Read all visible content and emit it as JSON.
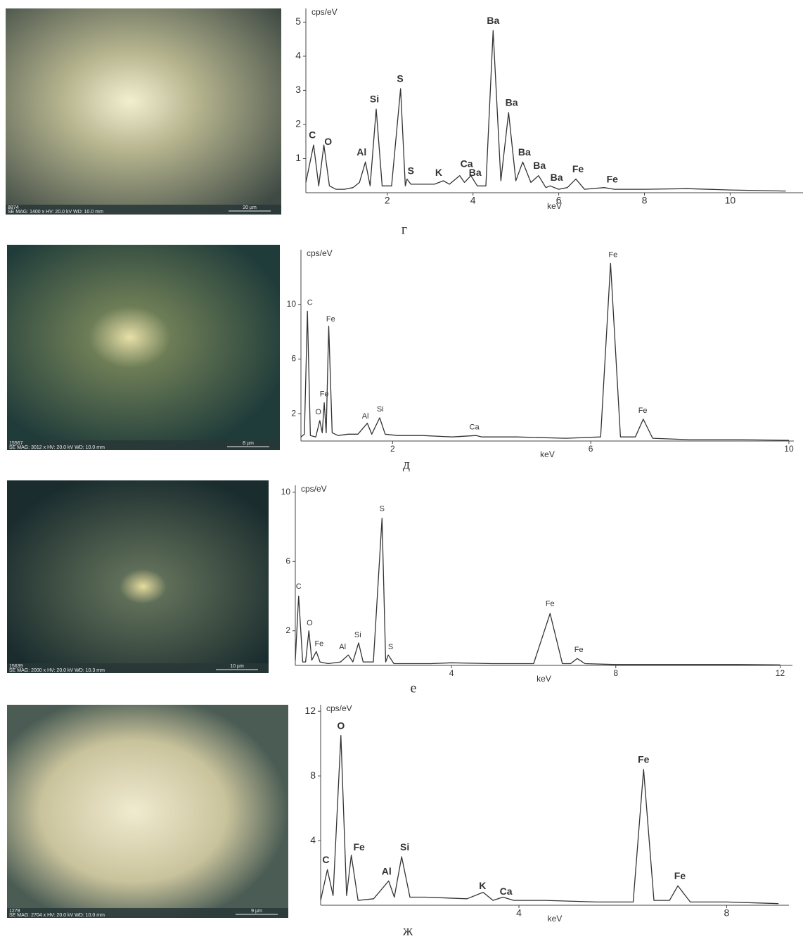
{
  "chart_data": [
    {
      "type": "line",
      "caption": "г",
      "y_label": "cps/eV",
      "x_label": "keV",
      "color": "#333333",
      "image": {
        "id": "8874",
        "info": "SE MAG: 1400 x HV: 20.0 kV WD: 10.0 mm",
        "scale": "20 µm"
      },
      "xlim": [
        0.1,
        11.7
      ],
      "ylim": [
        0,
        5.4
      ],
      "xticks": [
        2,
        4,
        6,
        8,
        10
      ],
      "yticks": [
        1,
        2,
        3,
        4,
        5
      ],
      "x": [
        0.1,
        0.28,
        0.4,
        0.52,
        0.65,
        0.8,
        1.0,
        1.2,
        1.35,
        1.49,
        1.6,
        1.74,
        1.88,
        2.1,
        2.31,
        2.42,
        2.46,
        2.55,
        2.8,
        3.1,
        3.31,
        3.45,
        3.69,
        3.8,
        3.95,
        4.1,
        4.3,
        4.47,
        4.65,
        4.83,
        5.0,
        5.16,
        5.35,
        5.53,
        5.7,
        5.8,
        6.0,
        6.2,
        6.4,
        6.6,
        7.06,
        7.3,
        8.0,
        9.0,
        10.0,
        11.3
      ],
      "values": [
        0.3,
        1.4,
        0.2,
        1.4,
        0.2,
        0.1,
        0.1,
        0.15,
        0.3,
        0.9,
        0.2,
        2.45,
        0.2,
        0.2,
        3.05,
        0.2,
        0.4,
        0.25,
        0.25,
        0.25,
        0.35,
        0.25,
        0.5,
        0.3,
        0.5,
        0.2,
        0.2,
        4.75,
        0.35,
        2.35,
        0.35,
        0.9,
        0.3,
        0.5,
        0.15,
        0.2,
        0.1,
        0.15,
        0.4,
        0.1,
        0.15,
        0.1,
        0.1,
        0.12,
        0.08,
        0.05
      ],
      "annotations": [
        {
          "text": "C",
          "x": 0.25,
          "y": 1.55
        },
        {
          "text": "O",
          "x": 0.62,
          "y": 1.35
        },
        {
          "text": "Al",
          "x": 1.4,
          "y": 1.05
        },
        {
          "text": "Si",
          "x": 1.7,
          "y": 2.6
        },
        {
          "text": "S",
          "x": 2.3,
          "y": 3.2
        },
        {
          "text": "S",
          "x": 2.55,
          "y": 0.5
        },
        {
          "text": "K",
          "x": 3.2,
          "y": 0.45
        },
        {
          "text": "Ca",
          "x": 3.85,
          "y": 0.7
        },
        {
          "text": "Ba",
          "x": 4.05,
          "y": 0.45
        },
        {
          "text": "Ba",
          "x": 4.47,
          "y": 4.9
        },
        {
          "text": "Ba",
          "x": 4.9,
          "y": 2.5
        },
        {
          "text": "Ba",
          "x": 5.2,
          "y": 1.05
        },
        {
          "text": "Ba",
          "x": 5.55,
          "y": 0.65
        },
        {
          "text": "Ba",
          "x": 5.95,
          "y": 0.3
        },
        {
          "text": "Fe",
          "x": 6.45,
          "y": 0.55
        },
        {
          "text": "Fe",
          "x": 7.25,
          "y": 0.25
        }
      ]
    },
    {
      "type": "line",
      "caption": "д",
      "y_label": "cps/eV",
      "x_label": "keV",
      "color": "#333333",
      "image": {
        "id": "15567",
        "info": "SE MAG: 3012 x HV: 20.0 kV WD: 10.0 mm",
        "scale": "8 µm"
      },
      "xlim": [
        0.15,
        10.1
      ],
      "ylim": [
        0,
        14
      ],
      "xticks": [
        2,
        6,
        10
      ],
      "yticks": [
        2,
        6,
        10
      ],
      "x": [
        0.15,
        0.22,
        0.28,
        0.34,
        0.45,
        0.53,
        0.58,
        0.62,
        0.66,
        0.71,
        0.78,
        0.9,
        1.1,
        1.3,
        1.49,
        1.58,
        1.74,
        1.85,
        2.1,
        2.6,
        3.2,
        3.69,
        3.8,
        4.5,
        5.5,
        6.2,
        6.4,
        6.6,
        6.9,
        7.06,
        7.25,
        8.0,
        9.0,
        10.0
      ],
      "values": [
        0.3,
        0.5,
        9.5,
        0.4,
        0.3,
        1.5,
        0.6,
        2.8,
        0.6,
        8.4,
        0.6,
        0.4,
        0.5,
        0.5,
        1.3,
        0.5,
        1.7,
        0.5,
        0.4,
        0.4,
        0.3,
        0.4,
        0.3,
        0.3,
        0.2,
        0.3,
        13,
        0.3,
        0.3,
        1.6,
        0.2,
        0.1,
        0.1,
        0.05
      ],
      "annotations": [
        {
          "text": "C",
          "x": 0.33,
          "y": 9.8
        },
        {
          "text": "Fe",
          "x": 0.75,
          "y": 8.6
        },
        {
          "text": "Fe",
          "x": 0.62,
          "y": 3.1
        },
        {
          "text": "O",
          "x": 0.5,
          "y": 1.8
        },
        {
          "text": "Al",
          "x": 1.45,
          "y": 1.5
        },
        {
          "text": "Si",
          "x": 1.75,
          "y": 2.0
        },
        {
          "text": "Ca",
          "x": 3.65,
          "y": 0.7
        },
        {
          "text": "Fe",
          "x": 6.45,
          "y": 13.3
        },
        {
          "text": "Fe",
          "x": 7.05,
          "y": 1.9
        }
      ]
    },
    {
      "type": "line",
      "caption": "е",
      "y_label": "cps/eV",
      "x_label": "keV",
      "color": "#333333",
      "image": {
        "id": "15639",
        "info": "SE MAG: 2000 x HV: 20.0 kV WD: 10.3 mm",
        "scale": "10 µm"
      },
      "xlim": [
        0.2,
        12.3
      ],
      "ylim": [
        0,
        10.4
      ],
      "xticks": [
        4,
        8,
        12
      ],
      "yticks": [
        2,
        6,
        10
      ],
      "x": [
        0.2,
        0.28,
        0.38,
        0.45,
        0.53,
        0.6,
        0.71,
        0.8,
        1.0,
        1.3,
        1.49,
        1.6,
        1.74,
        1.85,
        2.1,
        2.31,
        2.4,
        2.46,
        2.6,
        3.0,
        3.5,
        4.0,
        5.0,
        6.0,
        6.4,
        6.7,
        6.9,
        7.06,
        7.25,
        8.0,
        9.0,
        10.0,
        11.0,
        12.0
      ],
      "values": [
        0.3,
        4.0,
        0.2,
        0.2,
        2.0,
        0.3,
        0.8,
        0.2,
        0.1,
        0.2,
        0.6,
        0.2,
        1.3,
        0.2,
        0.2,
        8.5,
        0.2,
        0.6,
        0.1,
        0.1,
        0.1,
        0.15,
        0.1,
        0.1,
        3.0,
        0.1,
        0.1,
        0.4,
        0.1,
        0.05,
        0.05,
        0.05,
        0.05,
        0.03
      ],
      "annotations": [
        {
          "text": "C",
          "x": 0.28,
          "y": 4.3
        },
        {
          "text": "O",
          "x": 0.55,
          "y": 2.2
        },
        {
          "text": "Fe",
          "x": 0.78,
          "y": 1.0
        },
        {
          "text": "Al",
          "x": 1.35,
          "y": 0.8
        },
        {
          "text": "Si",
          "x": 1.72,
          "y": 1.5
        },
        {
          "text": "S",
          "x": 2.31,
          "y": 8.8
        },
        {
          "text": "S",
          "x": 2.52,
          "y": 0.8
        },
        {
          "text": "Fe",
          "x": 6.4,
          "y": 3.3
        },
        {
          "text": "Fe",
          "x": 7.1,
          "y": 0.65
        }
      ]
    },
    {
      "type": "line",
      "caption": "ж",
      "y_label": "cps/eV",
      "x_label": "keV",
      "color": "#333333",
      "image": {
        "id": "1278",
        "info": "SE MAG: 2704 x HV: 20.0 kV WD: 10.0 mm",
        "scale": "9 µm"
      },
      "xlim": [
        0.18,
        9.2
      ],
      "ylim": [
        0,
        12.4
      ],
      "xticks": [
        4,
        8
      ],
      "yticks": [
        4,
        8,
        12
      ],
      "x": [
        0.18,
        0.31,
        0.42,
        0.57,
        0.68,
        0.77,
        0.9,
        1.2,
        1.49,
        1.6,
        1.74,
        1.9,
        2.2,
        3.0,
        3.31,
        3.5,
        3.69,
        3.9,
        4.5,
        5.5,
        6.2,
        6.4,
        6.6,
        6.9,
        7.06,
        7.3,
        8.0,
        9.0
      ],
      "values": [
        0.3,
        2.2,
        0.6,
        10.5,
        0.6,
        3.1,
        0.3,
        0.4,
        1.5,
        0.5,
        3.0,
        0.5,
        0.5,
        0.4,
        0.8,
        0.3,
        0.5,
        0.3,
        0.3,
        0.2,
        0.2,
        8.4,
        0.3,
        0.3,
        1.2,
        0.2,
        0.2,
        0.1
      ],
      "annotations": [
        {
          "text": "C",
          "x": 0.28,
          "y": 2.5
        },
        {
          "text": "O",
          "x": 0.57,
          "y": 10.8
        },
        {
          "text": "Fe",
          "x": 0.92,
          "y": 3.3
        },
        {
          "text": "Al",
          "x": 1.45,
          "y": 1.8
        },
        {
          "text": "Si",
          "x": 1.8,
          "y": 3.3
        },
        {
          "text": "K",
          "x": 3.3,
          "y": 0.9
        },
        {
          "text": "Ca",
          "x": 3.75,
          "y": 0.55
        },
        {
          "text": "Fe",
          "x": 6.4,
          "y": 8.7
        },
        {
          "text": "Fe",
          "x": 7.1,
          "y": 1.5
        }
      ]
    }
  ]
}
